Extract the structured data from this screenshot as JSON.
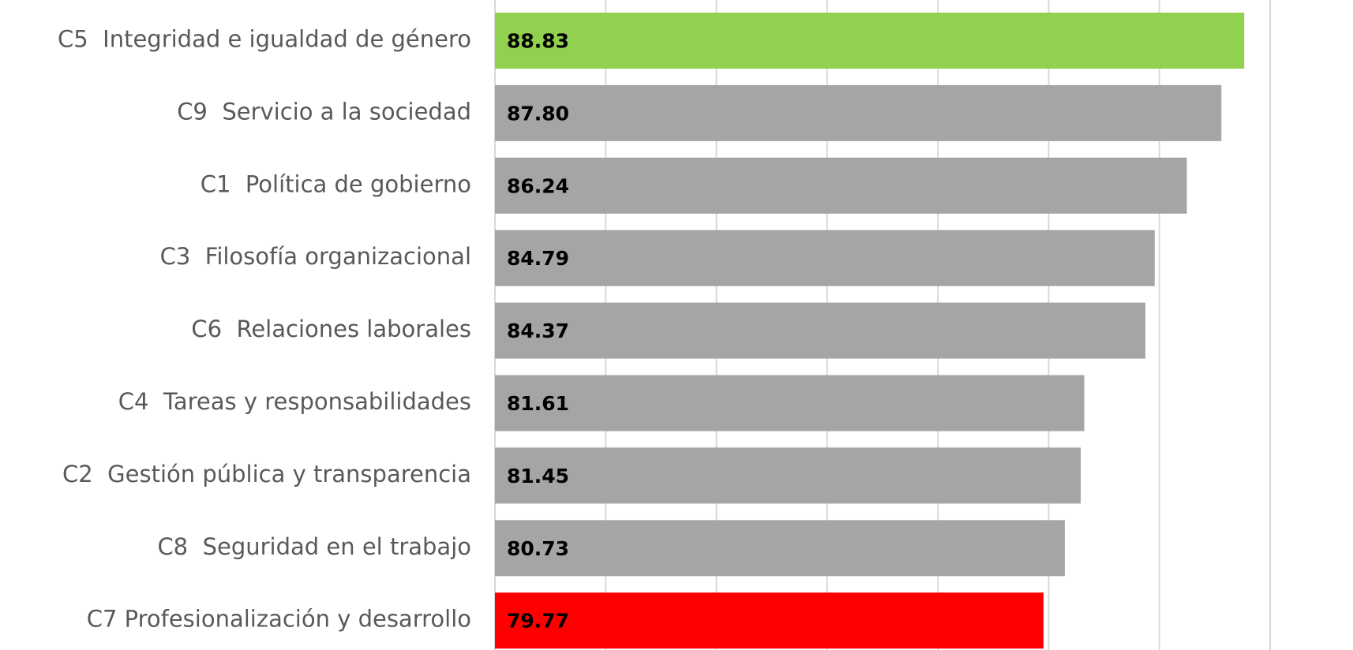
{
  "chart_data": {
    "type": "bar",
    "orientation": "horizontal",
    "categories": [
      "C5  Integridad e igualdad de género",
      "C9  Servicio a la sociedad",
      "C1  Política de gobierno",
      "C3  Filosofía organizacional",
      "C6  Relaciones laborales",
      "C4  Tareas y responsabilidades",
      "C2  Gestión pública y transparencia",
      "C8  Seguridad en el trabajo",
      "C7 Profesionalización y desarrollo"
    ],
    "values": [
      88.83,
      87.8,
      86.24,
      84.79,
      84.37,
      81.61,
      81.45,
      80.73,
      79.77
    ],
    "value_labels": [
      "88.83",
      "87.80",
      "86.24",
      "84.79",
      "84.37",
      "81.61",
      "81.45",
      "80.73",
      "79.77"
    ],
    "colors": [
      "#92d050",
      "#a5a5a5",
      "#a5a5a5",
      "#a5a5a5",
      "#a5a5a5",
      "#a5a5a5",
      "#a5a5a5",
      "#a5a5a5",
      "#ff0000"
    ],
    "xlim": [
      55,
      90
    ],
    "xticks": [
      55,
      60,
      65,
      70,
      75,
      80,
      85,
      90
    ],
    "grid": true
  }
}
